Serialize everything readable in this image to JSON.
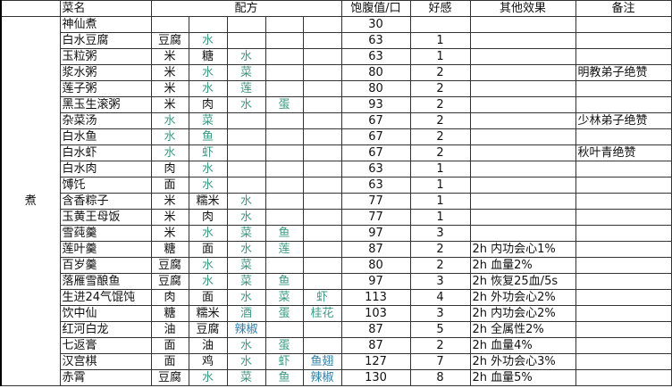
{
  "header": {
    "category": "",
    "name": "菜名",
    "recipe": "配方",
    "satiety": "饱腹值/口",
    "favor": "好感",
    "effect": "其他效果",
    "note": "备注"
  },
  "category": "煮",
  "colors": {
    "plain": "#111111",
    "green": "#3a9a82",
    "blue": "#2f7fa8"
  },
  "ingredient_colors": {
    "水": "green",
    "菜": "green",
    "莲": "green",
    "蛋": "green",
    "鱼": "green",
    "虾": "green",
    "酒": "green",
    "桂花": "green",
    "辣椒": "blue",
    "鱼翅": "blue"
  },
  "rows": [
    {
      "name": "神仙煮",
      "recipe": [],
      "satiety": "30",
      "favor": "",
      "effect": "",
      "note": ""
    },
    {
      "name": "白水豆腐",
      "recipe": [
        "豆腐",
        "水"
      ],
      "satiety": "63",
      "favor": "1",
      "effect": "",
      "note": ""
    },
    {
      "name": "玉粒粥",
      "recipe": [
        "米",
        "糖",
        "水"
      ],
      "satiety": "63",
      "favor": "1",
      "effect": "",
      "note": ""
    },
    {
      "name": "浆水粥",
      "recipe": [
        "米",
        "水",
        "菜"
      ],
      "satiety": "80",
      "favor": "2",
      "effect": "",
      "note": "明教弟子绝赞"
    },
    {
      "name": "莲子粥",
      "recipe": [
        "米",
        "水",
        "莲"
      ],
      "satiety": "80",
      "favor": "2",
      "effect": "",
      "note": ""
    },
    {
      "name": "黑玉生滚粥",
      "recipe": [
        "米",
        "肉",
        "水",
        "蛋"
      ],
      "satiety": "93",
      "favor": "2",
      "effect": "",
      "note": ""
    },
    {
      "name": "杂菜汤",
      "recipe": [
        "水",
        "菜"
      ],
      "satiety": "67",
      "favor": "2",
      "effect": "",
      "note": "少林弟子绝赞"
    },
    {
      "name": "白水鱼",
      "recipe": [
        "水",
        "鱼"
      ],
      "satiety": "67",
      "favor": "2",
      "effect": "",
      "note": ""
    },
    {
      "name": "白水虾",
      "recipe": [
        "水",
        "虾"
      ],
      "satiety": "67",
      "favor": "2",
      "effect": "",
      "note": "秋叶青绝赞"
    },
    {
      "name": "白水肉",
      "recipe": [
        "肉",
        "水"
      ],
      "satiety": "63",
      "favor": "1",
      "effect": "",
      "note": ""
    },
    {
      "name": "馎饦",
      "recipe": [
        "面",
        "水"
      ],
      "satiety": "63",
      "favor": "1",
      "effect": "",
      "note": ""
    },
    {
      "name": "含香粽子",
      "recipe": [
        "米",
        "糯米",
        "水"
      ],
      "satiety": "77",
      "favor": "1",
      "effect": "",
      "note": ""
    },
    {
      "name": "玉黄王母饭",
      "recipe": [
        "米",
        "肉",
        "水"
      ],
      "satiety": "77",
      "favor": "1",
      "effect": "",
      "note": ""
    },
    {
      "name": "雪莼羹",
      "recipe": [
        "米",
        "水",
        "菜",
        "鱼"
      ],
      "satiety": "97",
      "favor": "3",
      "effect": "",
      "note": ""
    },
    {
      "name": "莲叶羹",
      "recipe": [
        "糖",
        "面",
        "水",
        "莲"
      ],
      "satiety": "87",
      "favor": "2",
      "effect": "2h 内功会心1%",
      "note": ""
    },
    {
      "name": "百岁羹",
      "recipe": [
        "豆腐",
        "水",
        "菜"
      ],
      "satiety": "80",
      "favor": "2",
      "effect": "2h 血量2%",
      "note": ""
    },
    {
      "name": "落雁雪酿鱼",
      "recipe": [
        "豆腐",
        "水",
        "菜",
        "鱼"
      ],
      "satiety": "97",
      "favor": "3",
      "effect": "2h 恢复25血/5s",
      "note": ""
    },
    {
      "name": "生进24气馄饨",
      "recipe": [
        "肉",
        "面",
        "水",
        "菜",
        "虾"
      ],
      "satiety": "113",
      "favor": "4",
      "effect": "2h 外功会心2%",
      "note": ""
    },
    {
      "name": "饮中仙",
      "recipe": [
        "糖",
        "糯米",
        "酒",
        "蛋",
        "桂花"
      ],
      "satiety": "103",
      "favor": "3",
      "effect": "2h 内功会心2%",
      "note": ""
    },
    {
      "name": "红河白龙",
      "recipe": [
        "油",
        "豆腐",
        "辣椒"
      ],
      "satiety": "87",
      "favor": "5",
      "effect": "2h 全属性2%",
      "note": ""
    },
    {
      "name": "七返膏",
      "recipe": [
        "面",
        "油",
        "水",
        "蛋"
      ],
      "satiety": "87",
      "favor": "2",
      "effect": "2h 血量4%",
      "note": ""
    },
    {
      "name": "汉宫棋",
      "recipe": [
        "面",
        "鸡",
        "水",
        "虾",
        "鱼翅"
      ],
      "satiety": "127",
      "favor": "7",
      "effect": "2h 外功会心3%",
      "note": ""
    },
    {
      "name": "赤霄",
      "recipe": [
        "豆腐",
        "水",
        "菜",
        "鱼",
        "辣椒"
      ],
      "satiety": "130",
      "favor": "8",
      "effect": "2h 血量5%",
      "note": ""
    }
  ]
}
